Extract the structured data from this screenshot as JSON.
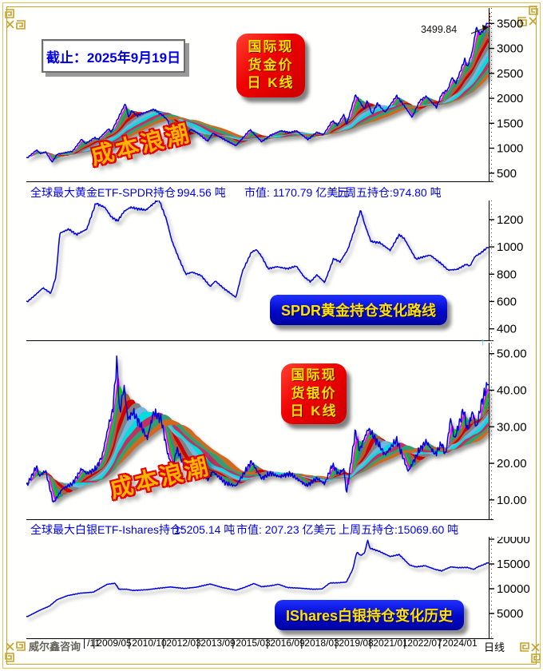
{
  "meta": {
    "date_label": "截止：2025年9月19日",
    "watermark": "威尔鑫咨询",
    "period_label": "日线",
    "gold_annotation": "3499.84",
    "wave_label": "成本浪潮"
  },
  "colors": {
    "accent_blue": "#0000e8",
    "badge_red": "#ee0000",
    "badge_blue": "#0008c8",
    "badge_text_yellow": "#ffe000",
    "frame_gold": "#c9a227",
    "price_line_blue": "#0000dd",
    "wave_orange": "#ffb400",
    "wave_outline_red": "#e60000"
  },
  "badges": {
    "gold_kline": {
      "lines": [
        "国际现",
        "货金价",
        "日 K线"
      ]
    },
    "silver_kline": {
      "lines": [
        "国际现",
        "货银价",
        "日 K线"
      ]
    },
    "spdr_label": "SPDR黄金持仓变化路线",
    "ishares_label": "IShares白银持仓变化历史"
  },
  "stats_gold": {
    "seg1": "全球最大黄金ETF-SPDR持仓：",
    "seg2": "994.56 吨",
    "seg3": "市值: 1170.79 亿美元",
    "seg4": "上周五持仓:974.80 吨"
  },
  "stats_silver": {
    "seg1": "全球最大白银ETF-Ishares持仓:",
    "seg2": "15205.14 吨",
    "seg3": "市值: 207.23 亿美元",
    "seg4": "上周五持仓:15069.60 吨"
  },
  "x_axis": {
    "labels": [
      "/11",
      "2009/05",
      "2010/10",
      "2012/03",
      "2013/09",
      "2015/03",
      "2016/09",
      "2018/03",
      "2019/08",
      "2021/01",
      "2022/07",
      "2024/01"
    ],
    "label_centers": [
      115,
      141,
      185,
      228,
      271,
      315,
      358,
      401,
      444,
      487,
      530,
      574
    ]
  },
  "ribbon_colors": [
    "#ff00ff",
    "#00d000",
    "#2e8b8b",
    "#b06030",
    "#d00000",
    "#808080",
    "#70b8e0",
    "#00dddd",
    "#c03060",
    "#30a070",
    "#d06820"
  ],
  "chart_data": [
    {
      "id": "gold",
      "type": "line",
      "title": "国际现货金价日K线",
      "ribbon": true,
      "noise": 0.013,
      "line_color": "#0000dd",
      "xlim": [
        2007.8,
        2025.78
      ],
      "ylim": [
        320,
        3810
      ],
      "tick_values": [
        500,
        1000,
        1500,
        2000,
        2500,
        3000,
        3500
      ],
      "tick_labels": [
        "500",
        "1000",
        "1500",
        "2000",
        "2500",
        "3000",
        "3500"
      ],
      "annotation": {
        "text": "3499.84",
        "value": 3499.84
      },
      "x": [
        2007.85,
        2008.2,
        2008.35,
        2008.55,
        2008.8,
        2009.0,
        2009.2,
        2009.6,
        2009.95,
        2010.1,
        2010.45,
        2010.6,
        2011.0,
        2011.1,
        2011.65,
        2011.78,
        2011.9,
        2012.1,
        2012.75,
        2013.1,
        2013.3,
        2013.5,
        2013.65,
        2013.95,
        2014.2,
        2014.5,
        2014.85,
        2015.05,
        2015.55,
        2015.95,
        2016.5,
        2016.95,
        2017.3,
        2017.7,
        2018.05,
        2018.3,
        2018.75,
        2019.1,
        2019.35,
        2019.7,
        2019.9,
        2020.15,
        2020.25,
        2020.6,
        2020.95,
        2021.05,
        2021.25,
        2021.45,
        2021.75,
        2022.2,
        2022.55,
        2022.8,
        2023.1,
        2023.35,
        2023.75,
        2023.95,
        2024.2,
        2024.35,
        2024.5,
        2024.85,
        2024.95,
        2025.15,
        2025.3,
        2025.42,
        2025.55,
        2025.72
      ],
      "values": [
        810,
        965,
        890,
        930,
        720,
        880,
        900,
        940,
        1180,
        1090,
        1210,
        1180,
        1390,
        1320,
        1895,
        1620,
        1750,
        1650,
        1780,
        1660,
        1560,
        1220,
        1320,
        1200,
        1380,
        1290,
        1140,
        1300,
        1160,
        1050,
        1370,
        1130,
        1260,
        1350,
        1310,
        1350,
        1175,
        1320,
        1270,
        1550,
        1460,
        1680,
        1470,
        2070,
        1780,
        1950,
        1680,
        1900,
        1720,
        2050,
        1810,
        1620,
        1950,
        2040,
        1820,
        2080,
        2180,
        2420,
        2300,
        2780,
        2620,
        2950,
        3430,
        3280,
        3350,
        3499.84
      ]
    },
    {
      "id": "spdr",
      "type": "line",
      "title": "SPDR黄金持仓变化路线",
      "ribbon": false,
      "noise": 0.008,
      "line_color": "#0000dd",
      "xlim": [
        2007.8,
        2025.78
      ],
      "ylim": [
        310,
        1340
      ],
      "tick_values": [
        400,
        600,
        800,
        1000,
        1200
      ],
      "tick_labels": [
        "400",
        "600",
        "800",
        "1000",
        "1200"
      ],
      "x": [
        2007.85,
        2008.1,
        2008.45,
        2008.75,
        2008.95,
        2009.1,
        2009.45,
        2009.75,
        2010.15,
        2010.5,
        2010.85,
        2011.1,
        2011.35,
        2011.6,
        2011.85,
        2012.1,
        2012.45,
        2012.95,
        2013.25,
        2013.45,
        2013.7,
        2014.0,
        2014.25,
        2014.6,
        2014.95,
        2015.15,
        2015.45,
        2015.95,
        2016.2,
        2016.55,
        2016.75,
        2016.95,
        2017.2,
        2017.55,
        2017.95,
        2018.3,
        2018.6,
        2018.85,
        2019.1,
        2019.4,
        2019.75,
        2020.0,
        2020.3,
        2020.55,
        2020.8,
        2020.95,
        2021.2,
        2021.55,
        2021.95,
        2022.3,
        2022.5,
        2022.95,
        2023.2,
        2023.5,
        2023.95,
        2024.2,
        2024.55,
        2024.9,
        2025.05,
        2025.25,
        2025.45,
        2025.72
      ],
      "values": [
        600,
        640,
        700,
        660,
        780,
        1100,
        1130,
        1090,
        1130,
        1320,
        1290,
        1220,
        1190,
        1260,
        1290,
        1280,
        1270,
        1350,
        1200,
        1050,
        930,
        800,
        815,
        790,
        710,
        750,
        700,
        630,
        820,
        960,
        980,
        930,
        840,
        855,
        840,
        860,
        780,
        745,
        795,
        740,
        915,
        890,
        980,
        1120,
        1270,
        1170,
        1040,
        1030,
        975,
        1090,
        1060,
        910,
        925,
        940,
        875,
        830,
        835,
        872,
        860,
        930,
        952,
        994.56
      ]
    },
    {
      "id": "silver",
      "type": "line",
      "title": "国际现货银价日K线",
      "ribbon": true,
      "noise": 0.05,
      "line_color": "#0000dd",
      "xlim": [
        2007.8,
        2025.78
      ],
      "ylim": [
        4.5,
        53
      ],
      "tick_values": [
        10,
        20,
        30,
        40,
        50
      ],
      "tick_labels": [
        "10.00",
        "20.00",
        "30.00",
        "40.00",
        "50.00"
      ],
      "x": [
        2007.85,
        2008.2,
        2008.3,
        2008.55,
        2008.85,
        2009.2,
        2009.6,
        2009.95,
        2010.15,
        2010.5,
        2010.75,
        2011.0,
        2011.15,
        2011.33,
        2011.42,
        2011.6,
        2011.75,
        2011.95,
        2012.2,
        2012.5,
        2012.75,
        2013.05,
        2013.3,
        2013.5,
        2013.65,
        2013.95,
        2014.5,
        2014.85,
        2015.05,
        2015.55,
        2015.95,
        2016.55,
        2016.95,
        2017.3,
        2017.65,
        2018.05,
        2018.7,
        2019.1,
        2019.4,
        2019.7,
        2019.95,
        2020.15,
        2020.25,
        2020.6,
        2020.75,
        2021.1,
        2021.45,
        2021.75,
        2022.2,
        2022.65,
        2023.1,
        2023.35,
        2023.7,
        2023.95,
        2024.1,
        2024.3,
        2024.45,
        2024.8,
        2024.95,
        2025.15,
        2025.3,
        2025.5,
        2025.72
      ],
      "values": [
        14.3,
        19.2,
        16.5,
        18.0,
        9.2,
        13.0,
        14.5,
        18.5,
        17.2,
        18.5,
        22.0,
        30.5,
        34.0,
        48.5,
        33.5,
        41.0,
        32.0,
        34.0,
        31.0,
        26.8,
        34.0,
        32.0,
        22.5,
        18.8,
        24.0,
        19.2,
        19.5,
        15.5,
        17.8,
        14.6,
        13.8,
        20.5,
        15.9,
        17.3,
        16.3,
        17.2,
        13.9,
        15.9,
        14.4,
        19.6,
        17.1,
        18.5,
        11.7,
        29.0,
        23.5,
        29.5,
        25.8,
        22.3,
        26.5,
        17.8,
        23.8,
        26.0,
        22.4,
        25.5,
        22.2,
        32.3,
        26.6,
        34.8,
        28.9,
        34.2,
        29.6,
        36.5,
        41.5
      ]
    },
    {
      "id": "ishares",
      "type": "line",
      "title": "IShares白银持仓变化历史",
      "ribbon": false,
      "noise": 0.007,
      "line_color": "#0000dd",
      "xlim": [
        2007.8,
        2025.78
      ],
      "ylim": [
        -160,
        20480
      ],
      "tick_values": [
        5000,
        10000,
        15000,
        20000
      ],
      "tick_labels": [
        "5000",
        "10000",
        "15000",
        "20000"
      ],
      "x": [
        2007.85,
        2008.3,
        2008.7,
        2009.0,
        2009.4,
        2009.9,
        2010.4,
        2010.95,
        2011.25,
        2011.4,
        2011.7,
        2011.95,
        2012.5,
        2012.95,
        2013.4,
        2013.95,
        2014.4,
        2014.95,
        2015.45,
        2015.95,
        2016.3,
        2016.65,
        2016.95,
        2017.3,
        2017.6,
        2017.95,
        2018.45,
        2018.95,
        2019.3,
        2019.6,
        2019.95,
        2020.25,
        2020.5,
        2020.65,
        2020.8,
        2020.95,
        2021.08,
        2021.15,
        2021.5,
        2021.95,
        2022.3,
        2022.7,
        2022.95,
        2023.3,
        2023.7,
        2023.95,
        2024.3,
        2024.6,
        2024.95,
        2025.2,
        2025.35,
        2025.5,
        2025.65,
        2025.72
      ],
      "values": [
        4400,
        5600,
        6500,
        7800,
        8600,
        9100,
        9300,
        10900,
        11100,
        9900,
        9900,
        9650,
        9800,
        10100,
        10350,
        10050,
        10300,
        10950,
        10200,
        9700,
        10300,
        11050,
        10400,
        10600,
        10900,
        10250,
        10100,
        9900,
        9950,
        11150,
        11200,
        11350,
        14000,
        17400,
        16700,
        17200,
        19900,
        18200,
        17600,
        16500,
        16900,
        14800,
        14400,
        14650,
        13900,
        13600,
        14400,
        14250,
        14300,
        13900,
        14400,
        14700,
        15000,
        15205.14
      ]
    }
  ]
}
